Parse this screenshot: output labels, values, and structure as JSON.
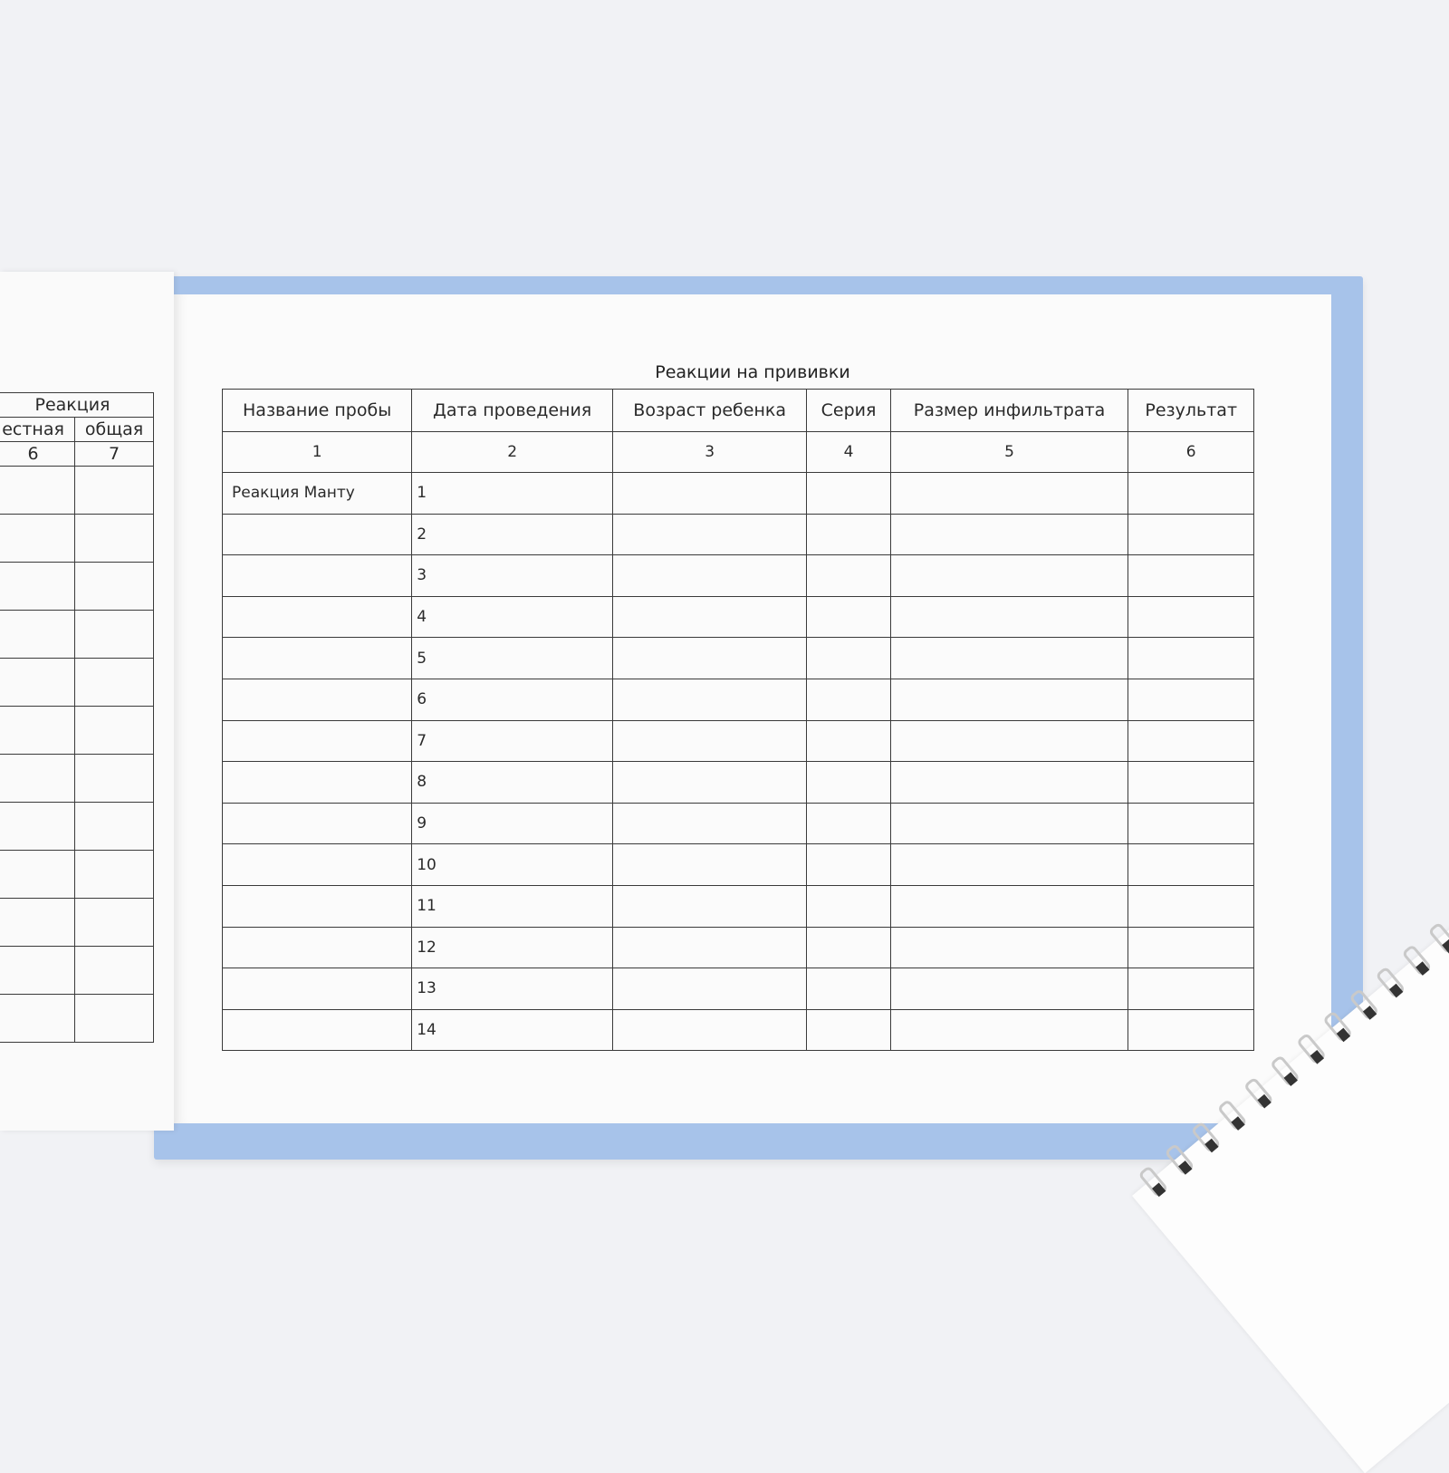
{
  "right_page": {
    "title": "Реакции на прививки",
    "headers": [
      "Название пробы",
      "Дата проведения",
      "Возраст ребенка",
      "Серия",
      "Размер инфильтрата",
      "Результат"
    ],
    "column_numbers": [
      "1",
      "2",
      "3",
      "4",
      "5",
      "6"
    ],
    "first_row_label": "Реакция Манту",
    "row_numbers": [
      "1",
      "2",
      "3",
      "4",
      "5",
      "6",
      "7",
      "8",
      "9",
      "10",
      "11",
      "12",
      "13",
      "14"
    ]
  },
  "left_page": {
    "group_header": "Реакция",
    "sub_headers": [
      "естная",
      "общая"
    ],
    "column_numbers": [
      "6",
      "7"
    ]
  },
  "colors": {
    "cover": "#a7c3ea",
    "page": "#fbfbfb",
    "lines": "#3a3a3a"
  }
}
